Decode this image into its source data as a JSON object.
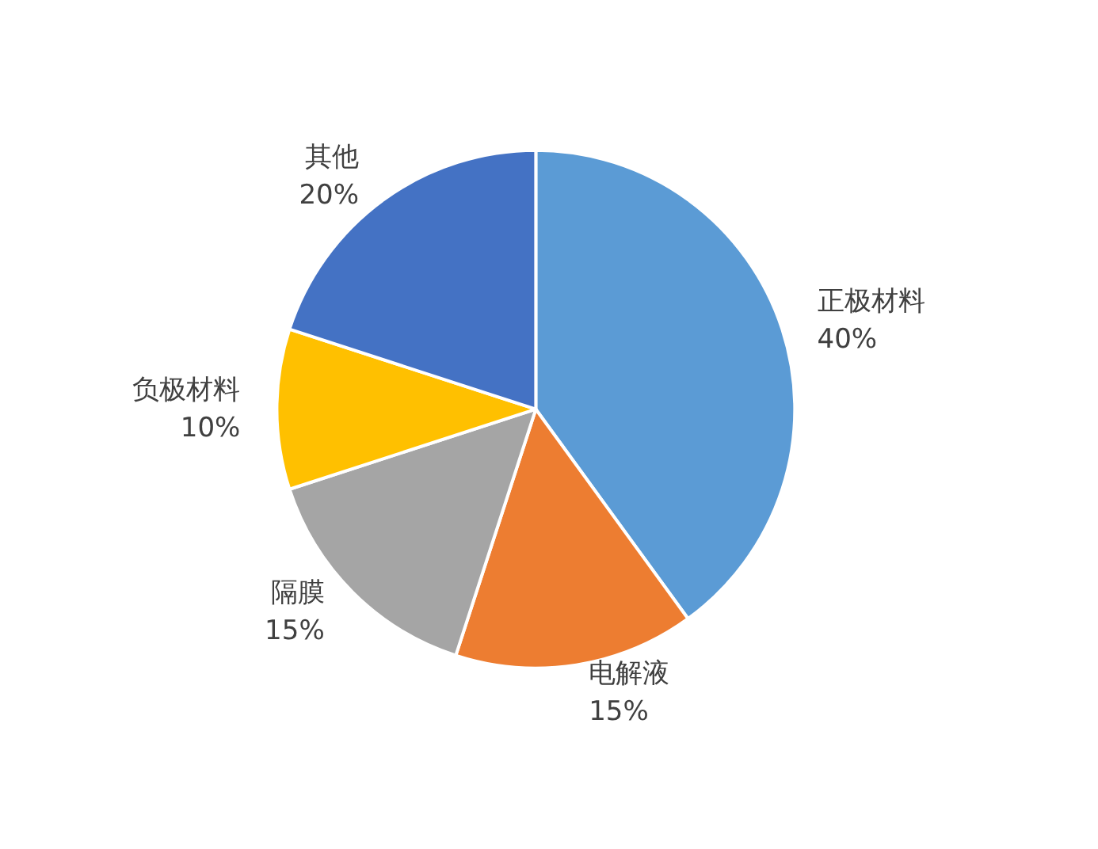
{
  "chart_data": {
    "type": "pie",
    "categories": [
      "正极材料",
      "电解液",
      "隔膜",
      "负极材料",
      "其他"
    ],
    "values": [
      40,
      15,
      15,
      10,
      20
    ],
    "value_labels": [
      "40%",
      "15%",
      "15%",
      "10%",
      "20%"
    ],
    "colors": [
      "#5b9bd5",
      "#ed7d31",
      "#a5a5a5",
      "#ffc000",
      "#4472c4"
    ],
    "legend": false
  }
}
